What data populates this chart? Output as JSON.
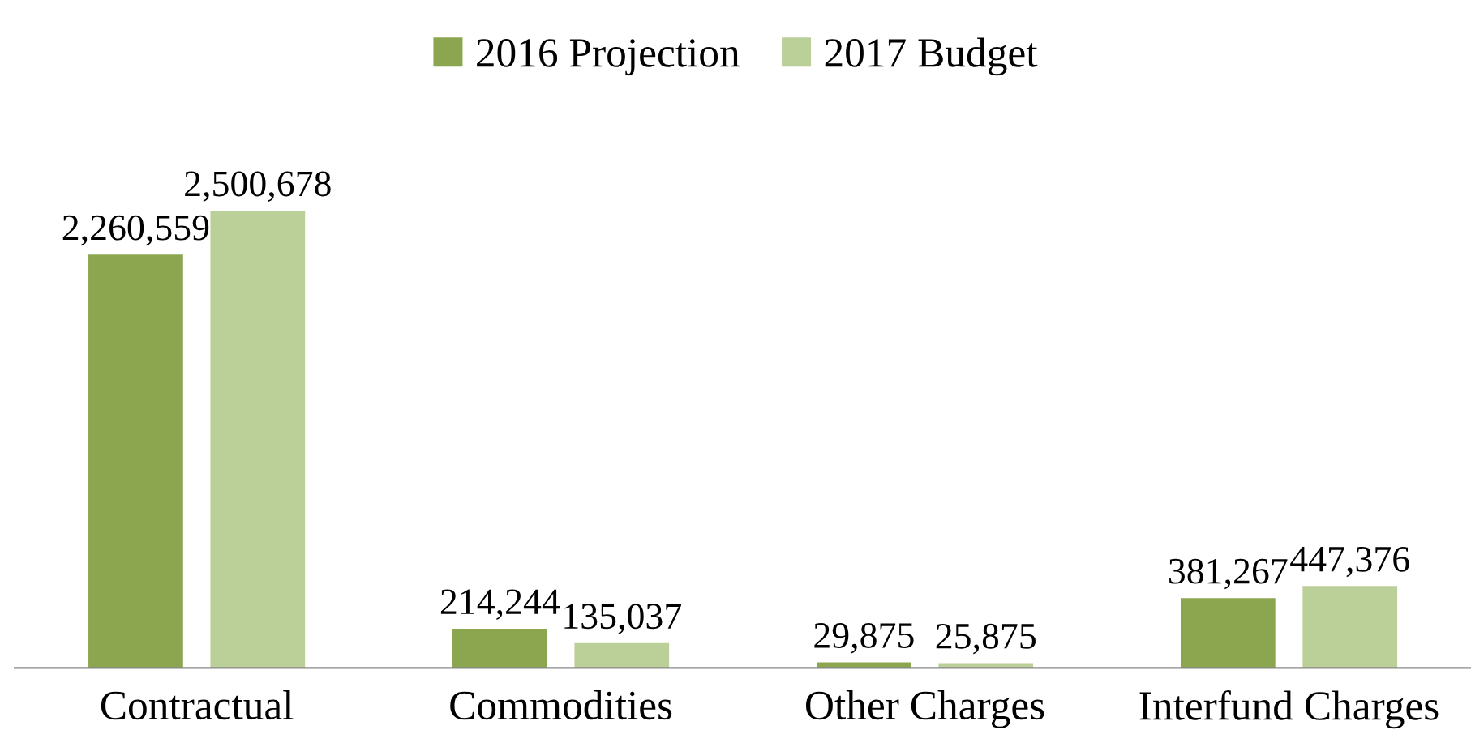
{
  "chart_data": {
    "type": "bar",
    "categories": [
      "Contractual",
      "Commodities",
      "Other Charges",
      "Interfund Charges"
    ],
    "series": [
      {
        "name": "2016 Projection",
        "color": "#8ba64f",
        "values": [
          2260559,
          214244,
          29875,
          381267
        ],
        "value_labels": [
          "2,260,559",
          "214,244",
          "29,875",
          "381,267"
        ]
      },
      {
        "name": "2017 Budget",
        "color": "#bbcf99",
        "values": [
          2500678,
          135037,
          25875,
          447376
        ],
        "value_labels": [
          "2,500,678",
          "135,037",
          "25,875",
          "447,376"
        ]
      }
    ],
    "legend": "top",
    "grid": false
  }
}
